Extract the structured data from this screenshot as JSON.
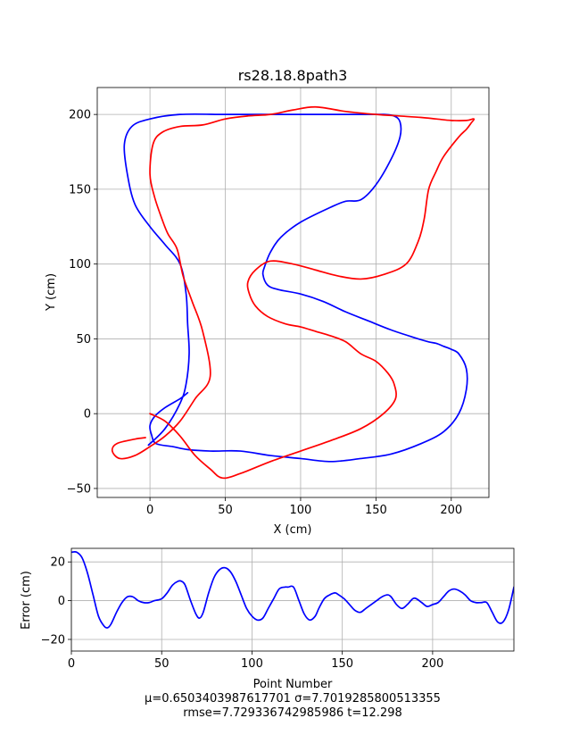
{
  "chart_data": [
    {
      "type": "line",
      "title": "rs28.18.8path3",
      "xlabel": "X (cm)",
      "ylabel": "Y (cm)",
      "xlim": [
        -35,
        225
      ],
      "ylim": [
        -56,
        218
      ],
      "xticks": [
        0,
        50,
        100,
        150,
        200
      ],
      "yticks": [
        -50,
        0,
        50,
        100,
        150,
        200
      ],
      "xtick_labels": [
        "0",
        "50",
        "100",
        "150",
        "200"
      ],
      "ytick_labels": [
        "−50",
        "0",
        "50",
        "100",
        "150",
        "200"
      ],
      "grid": true,
      "series": [
        {
          "color": "#0000ff",
          "x": [
            -1,
            10,
            20,
            24,
            26,
            25,
            24,
            20,
            10,
            0,
            -10,
            -15,
            -17,
            -12,
            0,
            20,
            50,
            75,
            100,
            120,
            135,
            145,
            155,
            162,
            166,
            166,
            160,
            150,
            140,
            130,
            120,
            100,
            87,
            80,
            76,
            75,
            78,
            85,
            100,
            115,
            130,
            145,
            160,
            175,
            185,
            190,
            195,
            200,
            205,
            210,
            210,
            205,
            195,
            180,
            160,
            140,
            120,
            100,
            80,
            60,
            40,
            25,
            15,
            4,
            1,
            0,
            3,
            10,
            20,
            25
          ],
          "y": [
            -21,
            -10,
            7,
            20,
            40,
            60,
            80,
            100,
            113,
            125,
            140,
            160,
            180,
            192,
            197,
            200,
            200,
            200,
            200,
            200,
            200,
            200,
            200,
            199,
            195,
            185,
            170,
            153,
            143,
            142,
            138,
            128,
            118,
            108,
            98,
            93,
            86,
            83,
            80,
            75,
            68,
            62,
            56,
            51,
            48,
            47,
            45,
            43,
            40,
            30,
            16,
            0,
            -12,
            -20,
            -27,
            -30,
            -32,
            -30,
            -28,
            -25,
            -25,
            -24,
            -22,
            -20,
            -14,
            -8,
            -2,
            4,
            10,
            14
          ]
        },
        {
          "color": "#ff0000",
          "x": [
            0,
            10,
            20,
            30,
            40,
            48,
            60,
            80,
            100,
            120,
            140,
            155,
            163,
            162,
            158,
            150,
            140,
            130,
            120,
            110,
            100,
            90,
            78,
            70,
            66,
            65,
            70,
            80,
            95,
            110,
            125,
            140,
            155,
            170,
            178,
            182,
            185,
            190,
            195,
            205,
            210,
            213,
            215,
            210,
            200,
            190,
            180,
            165,
            150,
            130,
            110,
            95,
            80,
            65,
            50,
            35,
            20,
            8,
            2,
            0,
            3,
            8,
            12,
            18,
            22,
            28,
            35,
            40,
            30,
            20,
            10,
            0,
            -10,
            -20,
            -25,
            -22,
            -10,
            -3
          ],
          "y": [
            0,
            -5,
            -15,
            -28,
            -37,
            -43,
            -40,
            -32,
            -25,
            -18,
            -10,
            0,
            10,
            20,
            27,
            35,
            40,
            48,
            52,
            55,
            58,
            60,
            65,
            72,
            80,
            88,
            96,
            102,
            100,
            96,
            92,
            90,
            93,
            100,
            115,
            130,
            150,
            162,
            172,
            185,
            190,
            194,
            197,
            196,
            196,
            197,
            198,
            199,
            200,
            202,
            205,
            203,
            200,
            199,
            197,
            193,
            192,
            188,
            180,
            160,
            145,
            130,
            120,
            110,
            92,
            75,
            55,
            25,
            10,
            -5,
            -15,
            -22,
            -28,
            -30,
            -25,
            -20,
            -17,
            -16
          ]
        }
      ]
    },
    {
      "type": "line",
      "xlabel": "Point Number",
      "ylabel": "Error (cm)",
      "xlim": [
        0,
        245
      ],
      "ylim": [
        -26,
        27
      ],
      "xticks": [
        0,
        50,
        100,
        150,
        200
      ],
      "yticks": [
        -20,
        0,
        20
      ],
      "xtick_labels": [
        "0",
        "50",
        "100",
        "150",
        "200"
      ],
      "ytick_labels": [
        "−20",
        "0",
        "20"
      ],
      "grid": true,
      "series": [
        {
          "color": "#0000ff",
          "x": [
            0,
            3,
            6,
            9,
            12,
            15,
            18,
            20,
            22,
            25,
            28,
            31,
            34,
            37,
            40,
            43,
            46,
            50,
            53,
            56,
            59,
            61,
            63,
            66,
            69,
            71,
            73,
            76,
            79,
            82,
            85,
            88,
            91,
            94,
            97,
            100,
            103,
            106,
            109,
            112,
            115,
            118,
            120,
            123,
            126,
            129,
            132,
            135,
            137,
            140,
            143,
            146,
            148,
            151,
            154,
            157,
            160,
            163,
            166,
            169,
            172,
            175,
            177,
            180,
            183,
            186,
            189,
            191,
            194,
            197,
            200,
            203,
            206,
            209,
            212,
            215,
            218,
            221,
            224,
            227,
            230,
            233,
            236,
            239,
            242,
            245
          ],
          "y": [
            25,
            25,
            22,
            14,
            3,
            -8,
            -13,
            -14,
            -12,
            -6,
            -1,
            2,
            2,
            0,
            -1,
            -1,
            0,
            1,
            4,
            8,
            10,
            10,
            8,
            0,
            -7,
            -9,
            -6,
            4,
            12,
            16,
            17,
            15,
            10,
            3,
            -4,
            -8,
            -10,
            -9,
            -4,
            1,
            6,
            7,
            7,
            7,
            0,
            -7,
            -10,
            -8,
            -4,
            1,
            3,
            4,
            3,
            1,
            -2,
            -5,
            -6,
            -4,
            -2,
            0,
            2,
            3,
            2,
            -2,
            -4,
            -2,
            1,
            1,
            -1,
            -3,
            -2,
            -1,
            2,
            5,
            6,
            5,
            3,
            0,
            -1,
            -1,
            -1,
            -6,
            -11,
            -11,
            -5,
            7
          ]
        }
      ]
    }
  ],
  "stats": {
    "line1": "μ=0.6503403987617701    σ=7.7019285800513355",
    "line2": "rmse=7.729336742985986    t=12.298"
  }
}
